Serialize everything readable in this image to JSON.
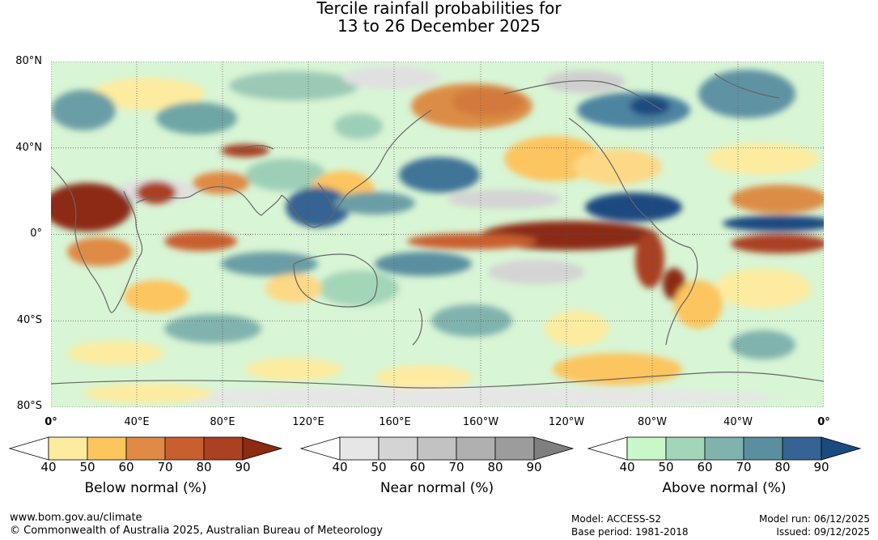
{
  "title": {
    "line1": "Tercile rainfall probabilities for",
    "line2": "13 to 26 December 2025"
  },
  "map": {
    "lat_labels": [
      "80°N",
      "40°N",
      "0°",
      "40°S",
      "80°S"
    ],
    "lon_labels": [
      "0°",
      "40°E",
      "80°E",
      "120°E",
      "160°E",
      "160°W",
      "120°W",
      "80°W",
      "40°W",
      "0°"
    ],
    "gridlines": "dotted"
  },
  "legends": [
    {
      "label": "Below normal (%)",
      "ticks": [
        "40",
        "50",
        "60",
        "70",
        "80",
        "90"
      ],
      "colors": [
        "#ffffff",
        "#fdeca0",
        "#fcc55e",
        "#df8a45",
        "#c95f2e",
        "#ab4122",
        "#8c2a12"
      ]
    },
    {
      "label": "Near normal (%)",
      "ticks": [
        "40",
        "50",
        "60",
        "70",
        "80",
        "90"
      ],
      "colors": [
        "#ffffff",
        "#e6e6e6",
        "#d4d4d4",
        "#c2c2c2",
        "#b0b0b0",
        "#9c9c9c",
        "#7f7f7f"
      ]
    },
    {
      "label": "Above normal (%)",
      "ticks": [
        "40",
        "50",
        "60",
        "70",
        "80",
        "90"
      ],
      "colors": [
        "#ffffff",
        "#c8f8c8",
        "#a3d5b8",
        "#80b3ad",
        "#5a8fa0",
        "#356393",
        "#1b4a80"
      ]
    }
  ],
  "footer": {
    "website": "www.bom.gov.au/climate",
    "copyright": "© Commonwealth of Australia 2025, Australian Bureau of Meteorology",
    "model": "Model: ACCESS-S2",
    "base_period": "Base period: 1981-2018",
    "model_run": "Model run: 06/12/2025",
    "issued": "Issued: 09/12/2025"
  }
}
